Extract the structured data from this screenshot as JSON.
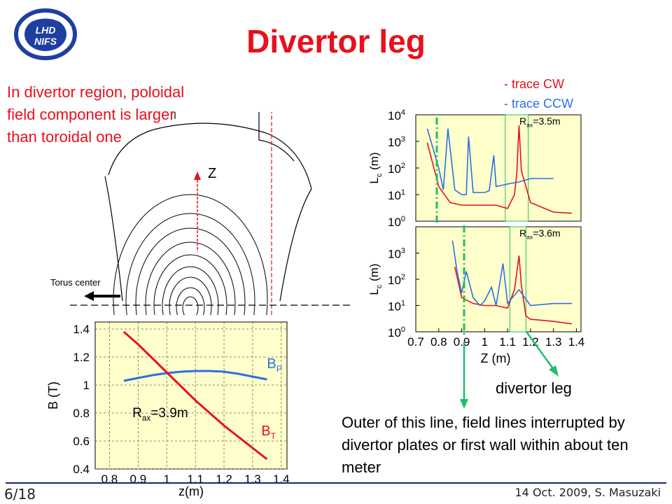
{
  "title": "Divertor leg",
  "logo_text": [
    "LHD",
    "NIFS"
  ],
  "lead_text": "In divertor region, poloidal field component is larger than toroidal one",
  "legend": {
    "cw": "-  trace CW",
    "ccw": "-  trace CCW"
  },
  "cross_section": {
    "z_label": "Z",
    "torus_center": "Torus center"
  },
  "chart_data": [
    {
      "type": "line",
      "xlabel": "z(m)",
      "ylabel": "B (T)",
      "xticks": [
        "0.8",
        "0.9",
        "1",
        "1.1",
        "1.2",
        "1.3",
        "1.4"
      ],
      "yticks": [
        "0.4",
        "0.6",
        "0.8",
        "1",
        "1.2",
        "1.4"
      ],
      "xlim": [
        0.75,
        1.42
      ],
      "ylim": [
        0.4,
        1.45
      ],
      "annotation": {
        "pre": "R",
        "sub": "ax",
        "post": "=3.9m"
      },
      "series": [
        {
          "name": "BP",
          "label_main": "B",
          "label_sub": "P",
          "color": "#2b6fe6",
          "x": [
            0.85,
            0.9,
            0.95,
            1.0,
            1.05,
            1.1,
            1.15,
            1.2,
            1.25,
            1.3,
            1.35
          ],
          "y": [
            1.03,
            1.05,
            1.07,
            1.085,
            1.095,
            1.1,
            1.1,
            1.095,
            1.08,
            1.06,
            1.04
          ]
        },
        {
          "name": "BT",
          "label_main": "B",
          "label_sub": "T",
          "color": "#e8101c",
          "x": [
            0.85,
            0.9,
            0.95,
            1.0,
            1.05,
            1.1,
            1.15,
            1.2,
            1.25,
            1.3,
            1.35
          ],
          "y": [
            1.38,
            1.29,
            1.19,
            1.09,
            0.99,
            0.89,
            0.8,
            0.71,
            0.63,
            0.55,
            0.47
          ]
        }
      ]
    },
    {
      "type": "line",
      "ylabel": {
        "main": "L",
        "sub": "c",
        "post": " (m)"
      },
      "ylog": true,
      "ylim": [
        1,
        10000
      ],
      "xlim": [
        0.7,
        1.42
      ],
      "yticks": [
        {
          "base": "10",
          "exp": "0"
        },
        {
          "base": "10",
          "exp": "1"
        },
        {
          "base": "10",
          "exp": "2"
        },
        {
          "base": "10",
          "exp": "3"
        },
        {
          "base": "10",
          "exp": "4"
        }
      ],
      "annotation": {
        "pre": "R",
        "sub": "ax",
        "post": "=3.5m"
      },
      "series": [
        {
          "name": "trace CW",
          "color": "#e8101c",
          "x": [
            0.75,
            0.8,
            0.85,
            0.9,
            0.95,
            1.0,
            1.05,
            1.1,
            1.13,
            1.14,
            1.15,
            1.16,
            1.2,
            1.3,
            1.38
          ],
          "y": [
            900,
            20,
            5,
            4,
            4,
            4,
            4,
            3,
            10,
            60,
            4000,
            80,
            5,
            2.2,
            2
          ]
        },
        {
          "name": "trace CCW",
          "color": "#2b6fe6",
          "x": [
            0.75,
            0.8,
            0.82,
            0.84,
            0.87,
            0.9,
            0.92,
            0.93,
            0.95,
            1.0,
            1.02,
            1.04,
            1.05,
            1.1,
            1.15,
            1.2,
            1.3
          ],
          "y": [
            3000,
            100,
            15,
            3000,
            15,
            10,
            10,
            1500,
            12,
            12,
            14,
            300,
            20,
            25,
            30,
            40,
            40
          ]
        }
      ]
    },
    {
      "type": "line",
      "xlabel": "Z (m)",
      "ylabel": {
        "main": "L",
        "sub": "c",
        "post": " (m)"
      },
      "ylog": true,
      "ylim": [
        1,
        10000
      ],
      "xlim": [
        0.7,
        1.42
      ],
      "xticks": [
        "0.7",
        "0.8",
        "0.9",
        "1",
        "1.1",
        "1.2",
        "1.3",
        "1.4"
      ],
      "yticks": [
        {
          "base": "10",
          "exp": "0"
        },
        {
          "base": "10",
          "exp": "1"
        },
        {
          "base": "10",
          "exp": "2"
        },
        {
          "base": "10",
          "exp": "3"
        }
      ],
      "annotation": {
        "pre": "R",
        "sub": "ax",
        "post": "=3.6m"
      },
      "series": [
        {
          "name": "trace CW",
          "color": "#e8101c",
          "x": [
            0.87,
            0.9,
            0.95,
            1.0,
            1.05,
            1.1,
            1.13,
            1.15,
            1.16,
            1.18,
            1.2,
            1.3,
            1.38
          ],
          "y": [
            300,
            20,
            12,
            10,
            10,
            8,
            40,
            800,
            60,
            4,
            3,
            2.5,
            2
          ]
        },
        {
          "name": "trace CCW",
          "color": "#2b6fe6",
          "x": [
            0.86,
            0.88,
            0.9,
            0.92,
            0.95,
            0.98,
            1.0,
            1.03,
            1.05,
            1.08,
            1.1,
            1.15,
            1.2,
            1.3,
            1.38
          ],
          "y": [
            3000,
            200,
            30,
            200,
            20,
            10,
            15,
            50,
            10,
            400,
            12,
            40,
            10,
            12,
            12
          ]
        }
      ]
    }
  ],
  "annotations": {
    "divertor_leg": "divertor leg",
    "outer_note": "Outer of this line, field lines interrupted by divertor plates or first wall within about ten meter"
  },
  "footer": {
    "slide": "6/18",
    "text": "14 Oct. 2009, S. Masuzaki"
  }
}
